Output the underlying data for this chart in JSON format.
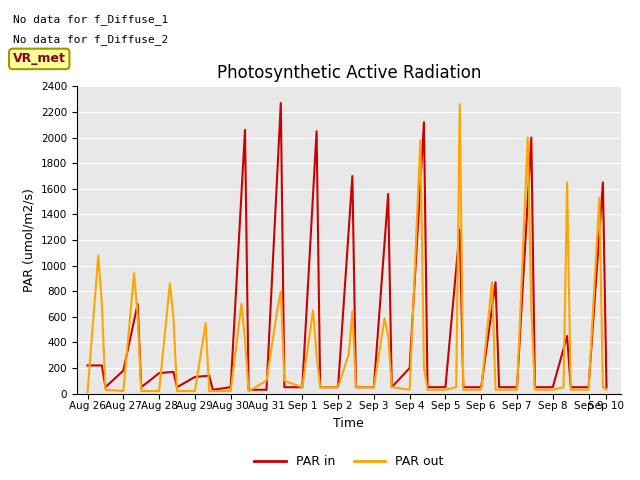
{
  "title": "Photosynthetic Active Radiation",
  "xlabel": "Time",
  "ylabel": "PAR (umol/m2/s)",
  "ylim": [
    0,
    2400
  ],
  "yticks": [
    0,
    200,
    400,
    600,
    800,
    1000,
    1200,
    1400,
    1600,
    1800,
    2000,
    2200,
    2400
  ],
  "background_color": "#e8e8e8",
  "text_annotations": [
    "No data for f_Diffuse_1",
    "No data for f_Diffuse_2"
  ],
  "vr_met_label": "VR_met",
  "legend_entries": [
    "PAR in",
    "PAR out"
  ],
  "par_in_color": "#cc0000",
  "par_out_color": "#ffa500",
  "par_in_x": [
    26.0,
    26.4,
    26.5,
    27.0,
    27.4,
    27.5,
    28.0,
    28.4,
    28.5,
    29.0,
    29.4,
    29.5,
    30.0,
    30.4,
    30.5,
    31.0,
    31.4,
    31.5,
    32.0,
    32.4,
    32.5,
    33.0,
    33.4,
    33.5,
    34.0,
    34.4,
    34.5,
    35.0,
    35.4,
    35.5,
    36.0,
    36.4,
    36.5,
    37.0,
    37.4,
    37.5,
    38.0,
    38.4,
    38.5,
    39.0,
    39.4,
    39.5,
    40.0,
    40.4,
    40.5
  ],
  "par_in_y": [
    220,
    220,
    50,
    180,
    700,
    50,
    160,
    170,
    50,
    130,
    140,
    30,
    50,
    2060,
    30,
    30,
    2270,
    50,
    50,
    2050,
    50,
    50,
    1700,
    50,
    50,
    1560,
    50,
    200,
    2120,
    50,
    50,
    1280,
    50,
    50,
    870,
    50,
    50,
    2000,
    50,
    50,
    450,
    50,
    50,
    1650,
    50
  ],
  "par_out_x": [
    26.0,
    26.3,
    26.4,
    26.5,
    27.0,
    27.3,
    27.4,
    27.5,
    28.0,
    28.3,
    28.4,
    28.5,
    29.0,
    29.3,
    29.4,
    29.5,
    30.0,
    30.3,
    30.4,
    30.5,
    31.0,
    31.3,
    31.4,
    31.5,
    32.0,
    32.3,
    32.4,
    32.5,
    33.0,
    33.3,
    33.4,
    33.5,
    34.0,
    34.3,
    34.4,
    34.5,
    35.0,
    35.3,
    35.4,
    35.5,
    36.0,
    36.3,
    36.4,
    36.5,
    37.0,
    37.3,
    37.4,
    37.5,
    38.0,
    38.3,
    38.4,
    38.5,
    39.0,
    39.3,
    39.4,
    39.5,
    40.0,
    40.3,
    40.4,
    40.5
  ],
  "par_out_y": [
    10,
    1080,
    700,
    30,
    20,
    940,
    610,
    20,
    20,
    860,
    600,
    20,
    20,
    550,
    20,
    20,
    20,
    700,
    420,
    20,
    100,
    650,
    800,
    100,
    50,
    650,
    300,
    50,
    50,
    310,
    640,
    50,
    50,
    590,
    450,
    50,
    30,
    1980,
    200,
    30,
    30,
    50,
    2260,
    30,
    30,
    870,
    30,
    30,
    30,
    2000,
    660,
    30,
    30,
    50,
    1650,
    30,
    30,
    1530,
    50,
    30
  ],
  "xtick_positions": [
    26,
    27,
    28,
    29,
    30,
    31,
    32,
    33,
    34,
    35,
    36,
    37,
    38,
    39,
    40,
    40.5
  ],
  "xtick_labels": [
    "Aug 26",
    "Aug 27",
    "Aug 28",
    "Aug 29",
    "Aug 30",
    "Aug 31",
    "Sep 1",
    "Sep 2",
    "Sep 3",
    "Sep 4",
    "Sep 5",
    "Sep 6",
    "Sep 7",
    "Sep 8",
    "Sep 9",
    "Sep 10"
  ],
  "xlim": [
    25.7,
    40.9
  ],
  "figsize": [
    6.4,
    4.8
  ],
  "dpi": 100
}
